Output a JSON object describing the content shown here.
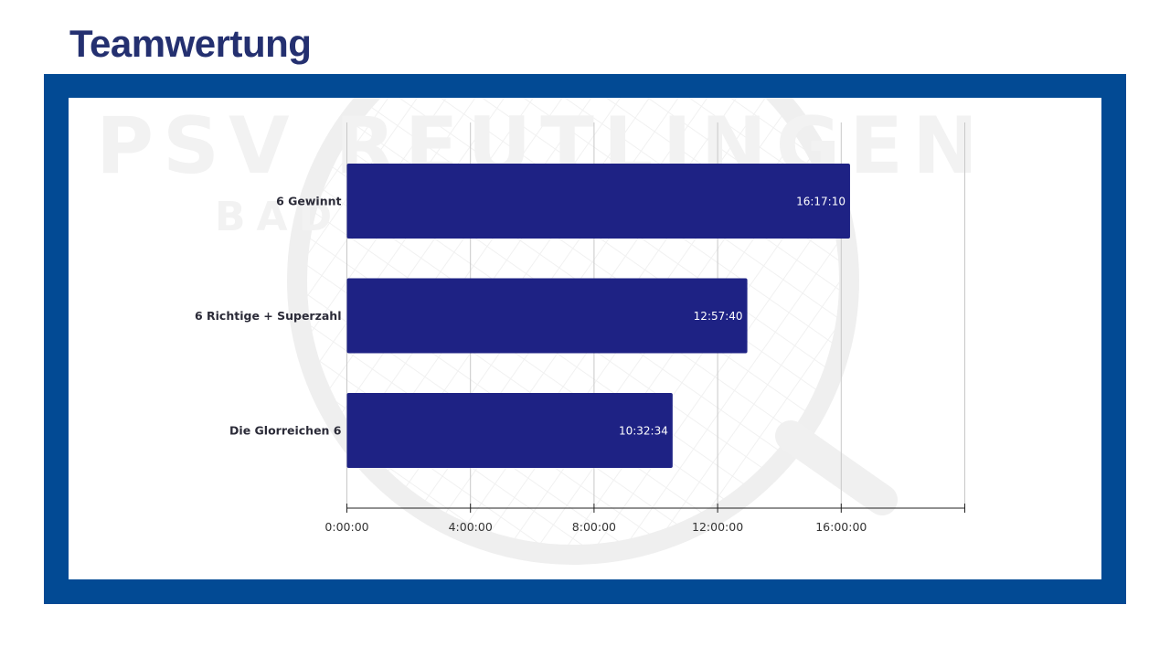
{
  "title": "Teamwertung",
  "colors": {
    "frame": "#024a94",
    "bar": "#1e2284",
    "title": "#243070"
  },
  "chart_data": {
    "type": "bar",
    "orientation": "horizontal",
    "title": "",
    "xlabel": "",
    "ylabel": "",
    "categories": [
      "6 Gewinnt",
      "6 Richtige + Superzahl",
      "Die Glorreichen 6"
    ],
    "values_hours": [
      16.2861,
      12.9611,
      10.5428
    ],
    "data_labels": [
      "16:17:10",
      "12:57:40",
      "10:32:34"
    ],
    "xlim_hours": [
      0,
      20
    ],
    "x_ticks_hours": [
      0,
      4,
      8,
      12,
      16,
      20
    ],
    "x_tick_labels": [
      "0:00:00",
      "4:00:00",
      "8:00:00",
      "12:00:00",
      "16:00:00",
      ""
    ],
    "grid": true,
    "legend": "none",
    "watermark_logo": "PSV REUTLINGEN BADMINTON"
  }
}
